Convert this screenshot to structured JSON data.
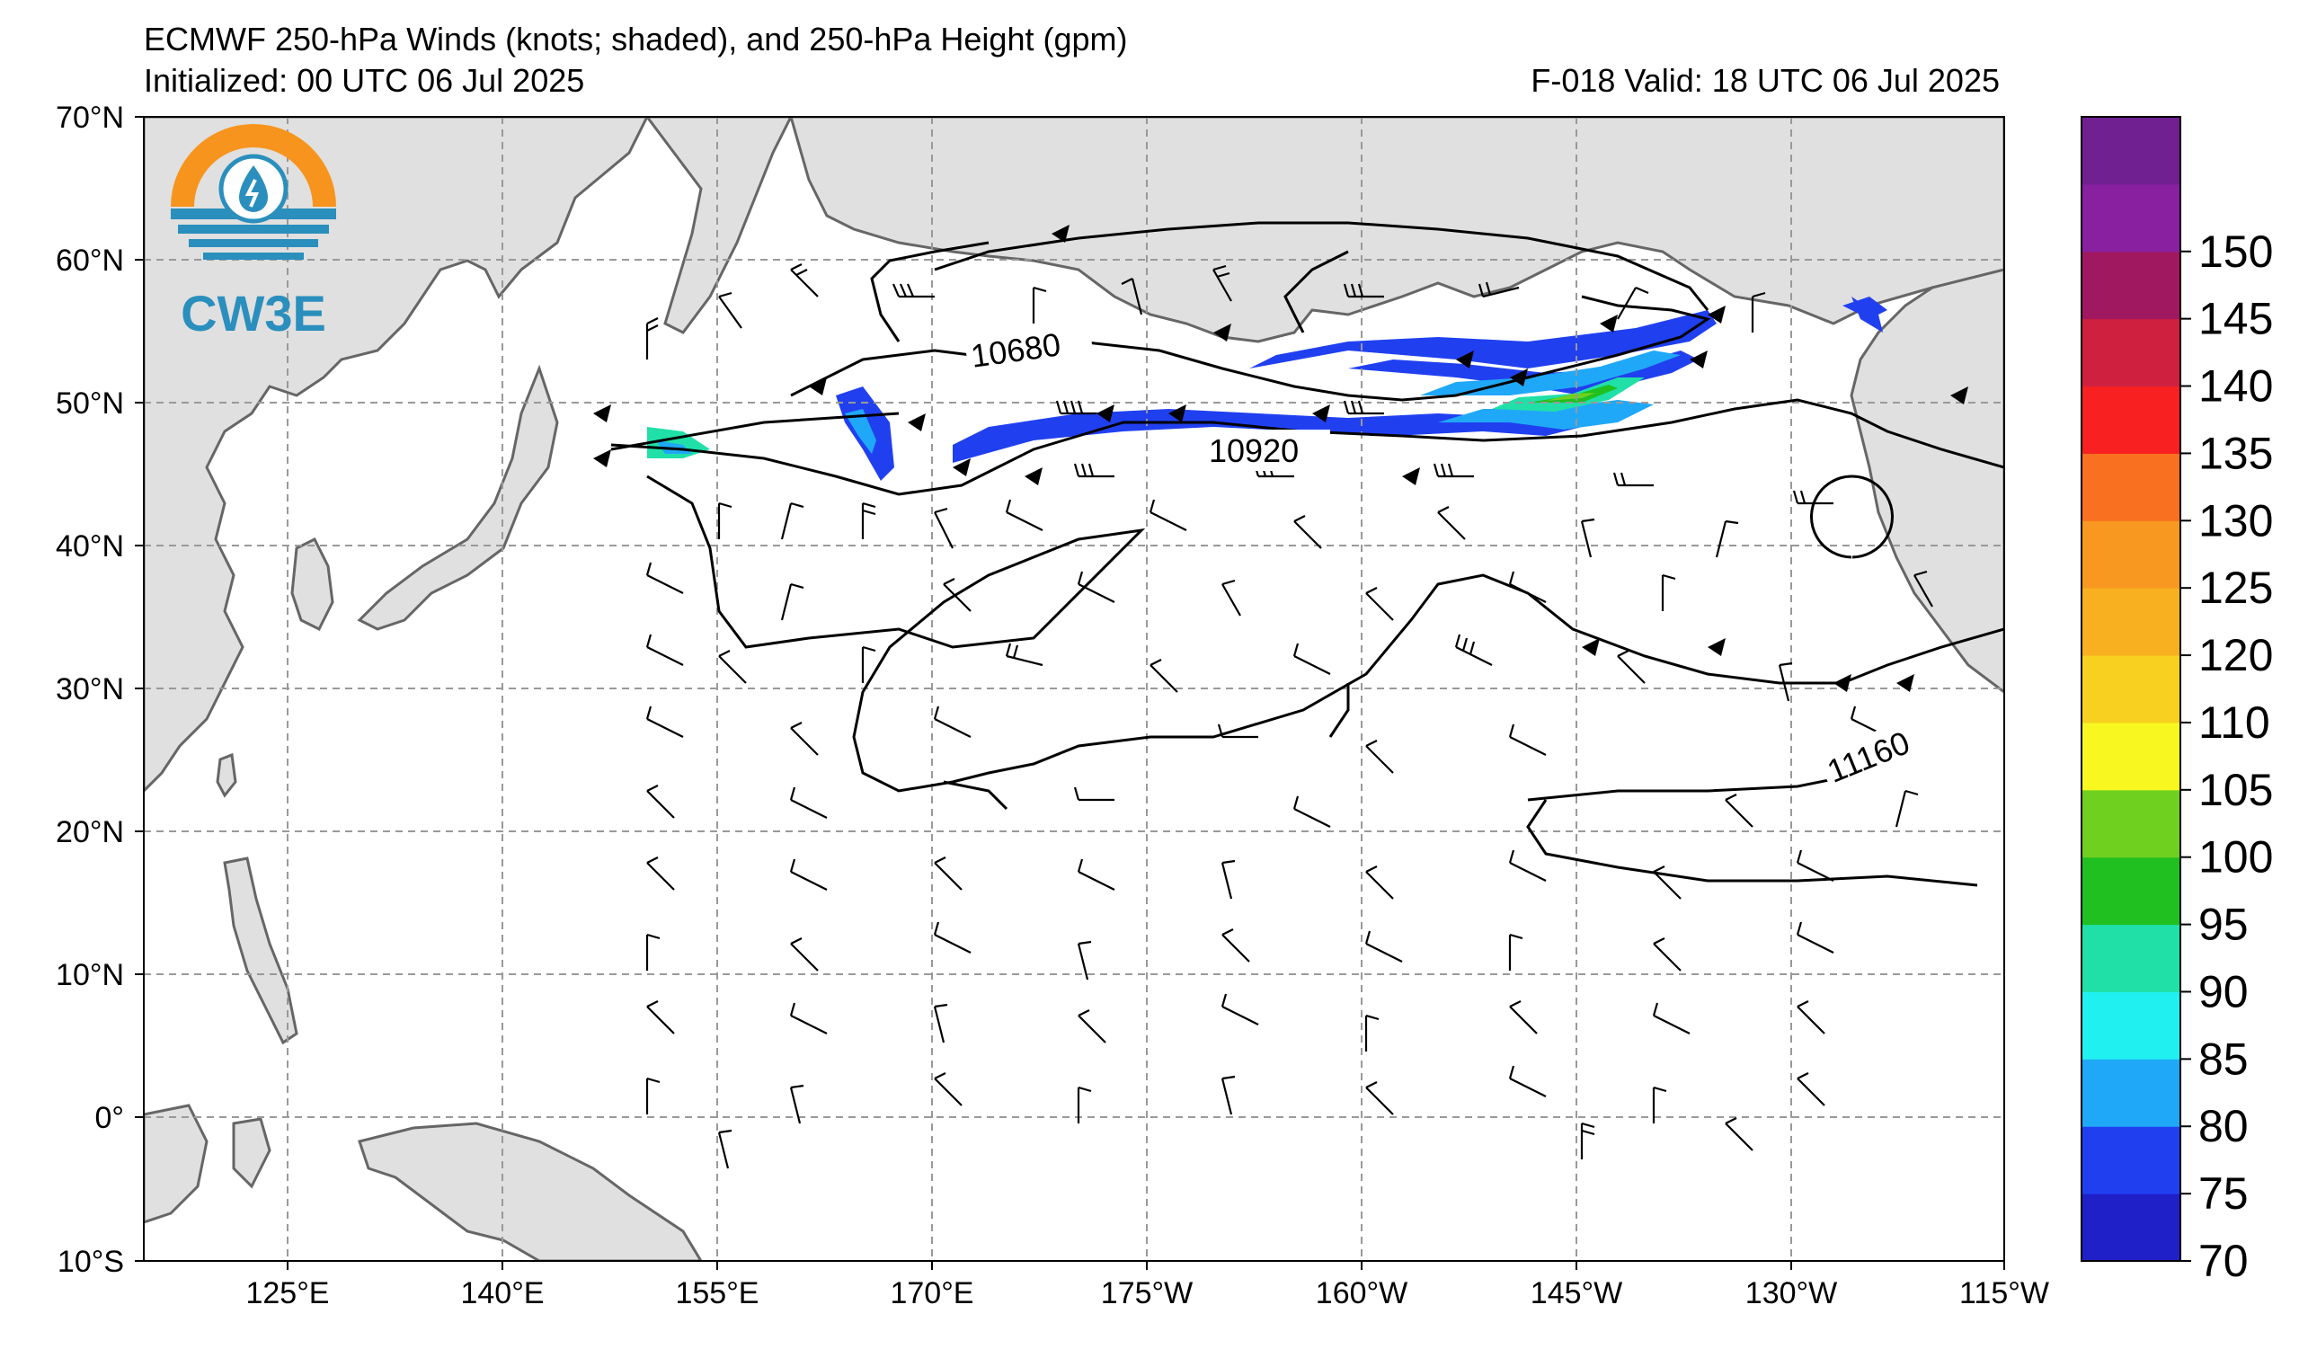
{
  "title": {
    "line1": "ECMWF 250-hPa Winds (knots; shaded), and 250-hPa Height (gpm)",
    "initialized": "Initialized: 00 UTC 06 Jul 2025",
    "valid": "F-018  Valid: 18 UTC 06 Jul 2025"
  },
  "logo": {
    "text": "CW3E",
    "icon": "water-drop-sun-icon",
    "colors": {
      "orange": "#f7941d",
      "blue": "#2a8fbd"
    }
  },
  "lat_labels": [
    "70°N",
    "60°N",
    "50°N",
    "40°N",
    "30°N",
    "20°N",
    "10°N",
    "0°",
    "10°S"
  ],
  "lon_labels": [
    "125°E",
    "140°E",
    "155°E",
    "170°E",
    "175°W",
    "160°W",
    "145°W",
    "130°W",
    "115°W"
  ],
  "contour_labels": [
    "10680",
    "10920",
    "11160"
  ],
  "colorbar": {
    "ticks": [
      "70",
      "75",
      "80",
      "85",
      "90",
      "95",
      "100",
      "105",
      "110",
      "120",
      "125",
      "130",
      "135",
      "140",
      "145",
      "150"
    ],
    "colors": [
      "#2020c8",
      "#2040f0",
      "#20a8f8",
      "#20f0f0",
      "#20e0a8",
      "#20c020",
      "#70d020",
      "#f8f820",
      "#f8d020",
      "#f8b020",
      "#f89820",
      "#f87020",
      "#f82020",
      "#d02040",
      "#a01860",
      "#8820a0",
      "#702090"
    ]
  },
  "colors": {
    "land": "#e0e0e0",
    "coast": "#666666",
    "grid": "#999999"
  }
}
